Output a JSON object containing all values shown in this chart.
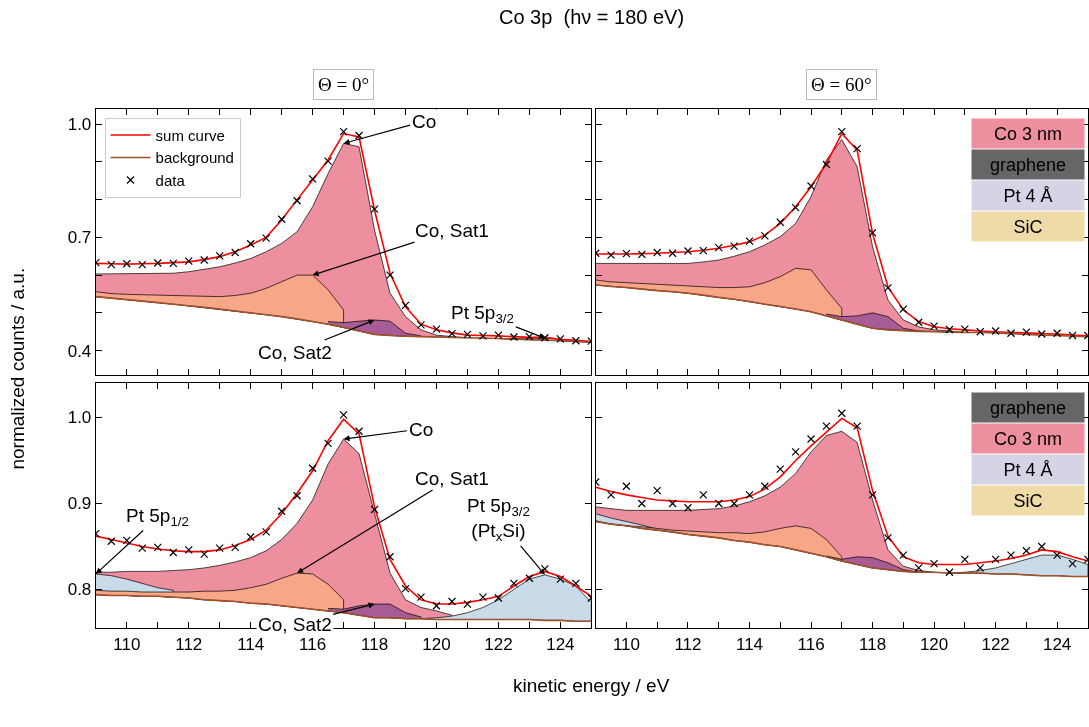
{
  "chart_data": [
    {
      "type": "line",
      "title": "Co 3p  (hν = 180 eV)",
      "subtitle": "Θ = 0°",
      "ylabel": "normalized counts / a.u.",
      "xlim": [
        109,
        125
      ],
      "ylim": [
        0.335,
        1.04
      ],
      "xticks": [
        110,
        {
          "value": 111,
          "label": null
        },
        112,
        {
          "value": 113,
          "label": null
        },
        114,
        {
          "value": 115,
          "label": null
        },
        116,
        {
          "value": 117,
          "label": null
        },
        118,
        {
          "value": 119,
          "label": null
        },
        120,
        {
          "value": 121,
          "label": null
        },
        122,
        {
          "value": 123,
          "label": null
        },
        124
      ],
      "yticks": [
        0.4,
        {
          "value": 0.5,
          "label": null
        },
        {
          "value": 0.6,
          "label": null
        },
        0.7,
        {
          "value": 0.8,
          "label": null
        },
        {
          "value": 0.9,
          "label": null
        },
        {
          "value": 1.0,
          "label": "1.0"
        }
      ],
      "tick_labels": "y",
      "legend": "top left",
      "x": [
        109,
        109.5,
        110,
        110.5,
        111,
        111.5,
        112,
        112.5,
        113,
        113.5,
        114,
        114.5,
        115,
        115.5,
        116,
        116.5,
        117,
        117.5,
        118,
        118.5,
        119,
        119.5,
        120,
        120.5,
        121,
        121.5,
        122,
        122.5,
        123,
        123.5,
        124,
        124.5,
        125
      ],
      "series": [
        {
          "type": "area",
          "color": "#ee8fa0",
          "x": [
            109,
            109.5,
            110,
            110.5,
            111,
            111.5,
            112,
            112.5,
            113,
            113.5,
            114,
            114.5,
            115,
            115.5,
            116,
            116.5,
            117,
            117.5,
            118,
            118.5,
            119,
            119.5,
            120,
            120.5,
            121
          ],
          "values": [
            0.603,
            0.603,
            0.603,
            0.603,
            0.603,
            0.605,
            0.609,
            0.615,
            0.622,
            0.632,
            0.644,
            0.662,
            0.684,
            0.715,
            0.781,
            0.869,
            0.949,
            0.94,
            0.719,
            0.552,
            0.49,
            0.455,
            0.441,
            0.437,
            0.435
          ]
        },
        {
          "type": "area",
          "color": "#f7a688",
          "x": [
            109,
            109.5,
            110,
            110.5,
            111,
            111.5,
            112,
            112.5,
            113,
            113.5,
            114,
            114.5,
            115,
            115.5,
            116,
            116.5,
            117
          ],
          "values": [
            0.556,
            0.551,
            0.549,
            0.548,
            0.547,
            0.545,
            0.544,
            0.543,
            0.543,
            0.546,
            0.552,
            0.565,
            0.583,
            0.6,
            0.6,
            0.561,
            0.508
          ]
        },
        {
          "type": "area",
          "color": "#a85c95",
          "x": [
            116.5,
            117,
            117.5,
            118,
            118.5,
            119,
            119.5
          ],
          "values": [
            0.477,
            0.474,
            0.478,
            0.481,
            0.478,
            0.446,
            0.439
          ]
        },
        {
          "type": "area",
          "color": "#c9dbe8",
          "x": [
            122,
            122.5,
            123,
            123.5,
            124,
            124.5,
            125
          ],
          "values": [
            0.432,
            0.432,
            0.432,
            0.433,
            0.43,
            0.426,
            0.422
          ]
        },
        {
          "name": "sum curve",
          "color": "#ff0000",
          "values": [
            0.631,
            0.63,
            0.629,
            0.63,
            0.631,
            0.633,
            0.635,
            0.641,
            0.649,
            0.662,
            0.68,
            0.7,
            0.746,
            0.8,
            0.852,
            0.905,
            0.975,
            0.966,
            0.772,
            0.605,
            0.516,
            0.47,
            0.455,
            0.447,
            0.441,
            0.44,
            0.439,
            0.437,
            0.435,
            0.435,
            0.43,
            0.427,
            0.424
          ]
        },
        {
          "name": "background",
          "color": "#a0522d",
          "values": [
            0.543,
            0.539,
            0.535,
            0.531,
            0.527,
            0.523,
            0.519,
            0.515,
            0.51,
            0.505,
            0.5,
            0.495,
            0.49,
            0.484,
            0.477,
            0.47,
            0.462,
            0.452,
            0.443,
            0.44,
            0.438,
            0.437,
            0.436,
            0.435,
            0.434,
            0.433,
            0.432,
            0.43,
            0.429,
            0.428,
            0.426,
            0.424,
            0.422
          ]
        },
        {
          "name": "data",
          "type": "scatter",
          "marker": "cross",
          "color": "#000000",
          "values": [
            0.633,
            0.628,
            0.63,
            0.628,
            0.632,
            0.631,
            0.637,
            0.64,
            0.651,
            0.66,
            0.683,
            0.698,
            0.748,
            0.797,
            0.855,
            0.902,
            0.98,
            0.97,
            0.775,
            0.6,
            0.52,
            0.468,
            0.457,
            0.445,
            0.443,
            0.439,
            0.441,
            0.436,
            0.437,
            0.434,
            0.431,
            0.426,
            0.425
          ]
        }
      ],
      "annotations": [
        {
          "text": "Co",
          "x": 117,
          "y": 0.949
        },
        {
          "text": "Co, Sat1",
          "x": 116,
          "y": 0.6
        },
        {
          "text": "Co, Sat2",
          "x": 118,
          "y": 0.481
        },
        {
          "text": "Pt 5p$_{3/2}$",
          "x": 123.5,
          "y": 0.433
        }
      ]
    },
    {
      "type": "line",
      "subtitle": "Θ = 60°",
      "xlim": [
        109,
        125
      ],
      "ylim": [
        0.335,
        1.04
      ],
      "xticks": [
        110,
        {
          "value": 111,
          "label": null
        },
        112,
        {
          "value": 113,
          "label": null
        },
        114,
        {
          "value": 115,
          "label": null
        },
        116,
        {
          "value": 117,
          "label": null
        },
        118,
        {
          "value": 119,
          "label": null
        },
        120,
        {
          "value": 121,
          "label": null
        },
        122,
        {
          "value": 123,
          "label": null
        },
        124
      ],
      "yticks": [
        0.4,
        {
          "value": 0.5,
          "label": null
        },
        {
          "value": 0.6,
          "label": null
        },
        0.7,
        {
          "value": 0.8,
          "label": null
        },
        {
          "value": 0.9,
          "label": null
        },
        1.0
      ],
      "tick_labels": false,
      "x": [
        109,
        109.5,
        110,
        110.5,
        111,
        111.5,
        112,
        112.5,
        113,
        113.5,
        114,
        114.5,
        115,
        115.5,
        116,
        116.5,
        117,
        117.5,
        118,
        118.5,
        119,
        119.5,
        120,
        120.5,
        121,
        121.5,
        122,
        122.5,
        123,
        123.5,
        124,
        124.5,
        125
      ],
      "series": [
        {
          "type": "area",
          "color": "#ee8fa0",
          "x": [
            109,
            109.5,
            110,
            110.5,
            111,
            111.5,
            112,
            112.5,
            113,
            113.5,
            114,
            114.5,
            115,
            115.5,
            116,
            116.5,
            117,
            117.5,
            118,
            118.5,
            119,
            119.5,
            120,
            120.5,
            121
          ],
          "values": [
            0.631,
            0.631,
            0.63,
            0.63,
            0.629,
            0.629,
            0.631,
            0.635,
            0.64,
            0.65,
            0.662,
            0.68,
            0.702,
            0.737,
            0.808,
            0.905,
            0.959,
            0.887,
            0.675,
            0.534,
            0.481,
            0.463,
            0.455,
            0.452,
            0.45
          ]
        },
        {
          "type": "area",
          "color": "#f7a688",
          "x": [
            109,
            109.5,
            110,
            110.5,
            111,
            111.5,
            112,
            112.5,
            113,
            113.5,
            114,
            114.5,
            115,
            115.5,
            116,
            116.5,
            117
          ],
          "values": [
            0.587,
            0.582,
            0.58,
            0.578,
            0.576,
            0.573,
            0.571,
            0.569,
            0.567,
            0.567,
            0.569,
            0.58,
            0.596,
            0.618,
            0.614,
            0.561,
            0.512
          ]
        },
        {
          "type": "area",
          "color": "#a85c95",
          "x": [
            116.5,
            117,
            117.5,
            118,
            118.5,
            119,
            119.5
          ],
          "values": [
            0.497,
            0.49,
            0.492,
            0.5,
            0.49,
            0.459,
            0.452
          ]
        },
        {
          "color": "#ff0000",
          "values": [
            0.656,
            0.656,
            0.656,
            0.657,
            0.658,
            0.66,
            0.662,
            0.666,
            0.671,
            0.679,
            0.688,
            0.706,
            0.737,
            0.781,
            0.834,
            0.896,
            0.975,
            0.931,
            0.71,
            0.569,
            0.508,
            0.477,
            0.463,
            0.458,
            0.455,
            0.452,
            0.45,
            0.448,
            0.447,
            0.445,
            0.444,
            0.441,
            0.439
          ]
        },
        {
          "color": "#a0522d",
          "values": [
            0.574,
            0.57,
            0.567,
            0.563,
            0.559,
            0.556,
            0.552,
            0.547,
            0.541,
            0.536,
            0.53,
            0.523,
            0.517,
            0.51,
            0.503,
            0.492,
            0.481,
            0.47,
            0.459,
            0.455,
            0.453,
            0.451,
            0.45,
            0.449,
            0.448,
            0.448,
            0.447,
            0.445,
            0.443,
            0.441,
            0.44,
            0.438,
            0.437
          ]
        },
        {
          "type": "scatter",
          "marker": "cross",
          "color": "#000000",
          "values": [
            0.658,
            0.653,
            0.657,
            0.655,
            0.66,
            0.658,
            0.664,
            0.665,
            0.673,
            0.677,
            0.69,
            0.704,
            0.74,
            0.779,
            0.836,
            0.893,
            0.98,
            0.935,
            0.712,
            0.566,
            0.51,
            0.475,
            0.465,
            0.456,
            0.457,
            0.45,
            0.452,
            0.446,
            0.449,
            0.444,
            0.446,
            0.44,
            0.44
          ]
        }
      ],
      "annotations": [
        "Co 3 nm",
        "graphene",
        "Pt 4 Å",
        "SiC"
      ]
    },
    {
      "type": "line",
      "xlabel": "kinetic energy / eV",
      "xlim": [
        109,
        125
      ],
      "ylim": [
        0.755,
        1.04
      ],
      "xticks": [
        110,
        {
          "value": 111,
          "label": null
        },
        112,
        {
          "value": 113,
          "label": null
        },
        114,
        {
          "value": 115,
          "label": null
        },
        116,
        {
          "value": 117,
          "label": null
        },
        118,
        {
          "value": 119,
          "label": null
        },
        120,
        {
          "value": 121,
          "label": null
        },
        122,
        {
          "value": 123,
          "label": null
        },
        124
      ],
      "yticks": [
        0.8,
        0.9,
        {
          "value": 1.0,
          "label": "1.0"
        }
      ],
      "x": [
        109,
        109.5,
        110,
        110.5,
        111,
        111.5,
        112,
        112.5,
        113,
        113.5,
        114,
        114.5,
        115,
        115.5,
        116,
        116.5,
        117,
        117.5,
        118,
        118.5,
        119,
        119.5,
        120,
        120.5,
        121,
        121.5,
        122,
        122.5,
        123,
        123.5,
        124,
        124.5,
        125
      ],
      "series": [
        {
          "type": "area",
          "color": "#ee8fa0",
          "x": [
            109,
            109.5,
            110,
            111,
            111.5,
            112,
            112.5,
            113,
            113.5,
            114,
            114.5,
            115,
            115.5,
            116,
            116.5,
            117,
            117.5,
            118.5,
            119,
            119.5,
            120,
            120.5
          ],
          "values": [
            0.82,
            0.82,
            0.821,
            0.821,
            0.822,
            0.823,
            0.825,
            0.828,
            0.832,
            0.837,
            0.845,
            0.858,
            0.877,
            0.904,
            0.946,
            0.975,
            0.958,
            0.819,
            0.788,
            0.779,
            0.775,
            0.77
          ]
        },
        {
          "type": "area",
          "color": "#c9dbe8",
          "x": [
            109,
            109.5,
            110,
            110.5,
            111,
            111.5
          ],
          "values": [
            0.818,
            0.816,
            0.812,
            0.807,
            0.802,
            0.799
          ]
        },
        {
          "type": "area",
          "color": "#f7a688",
          "x": [
            109,
            109.5,
            110,
            110.5,
            111,
            111.5,
            112,
            112.5,
            113,
            113.5,
            114,
            114.5,
            115,
            115.5,
            116,
            116.5,
            117
          ],
          "values": [
            0.799,
            0.798,
            0.798,
            0.797,
            0.797,
            0.797,
            0.797,
            0.798,
            0.798,
            0.799,
            0.802,
            0.806,
            0.813,
            0.819,
            0.818,
            0.806,
            0.788
          ]
        },
        {
          "type": "area",
          "color": "#a85c95",
          "x": [
            116.5,
            117,
            117.5,
            118,
            118.5,
            119,
            119.5
          ],
          "values": [
            0.778,
            0.777,
            0.781,
            0.783,
            0.783,
            0.773,
            0.768
          ]
        },
        {
          "type": "area",
          "color": "#c9dbe8",
          "x": [
            119.5,
            120,
            120.5,
            121,
            121.5,
            122,
            122.5,
            123,
            123.5,
            124,
            124.5,
            125
          ],
          "values": [
            0.766,
            0.767,
            0.769,
            0.773,
            0.779,
            0.788,
            0.8,
            0.812,
            0.817,
            0.812,
            0.804,
            0.785
          ]
        },
        {
          "color": "#ff0000",
          "values": [
            0.862,
            0.858,
            0.854,
            0.85,
            0.847,
            0.845,
            0.844,
            0.844,
            0.846,
            0.851,
            0.858,
            0.869,
            0.888,
            0.912,
            0.938,
            0.973,
            0.998,
            0.981,
            0.896,
            0.835,
            0.804,
            0.788,
            0.783,
            0.783,
            0.785,
            0.788,
            0.792,
            0.804,
            0.815,
            0.821,
            0.815,
            0.804,
            0.792
          ]
        },
        {
          "color": "#a0522d",
          "values": [
            0.794,
            0.793,
            0.793,
            0.792,
            0.792,
            0.791,
            0.79,
            0.788,
            0.787,
            0.786,
            0.784,
            0.783,
            0.781,
            0.779,
            0.777,
            0.775,
            0.773,
            0.77,
            0.767,
            0.767,
            0.766,
            0.766,
            0.765,
            0.765,
            0.765,
            0.765,
            0.765,
            0.765,
            0.765,
            0.764,
            0.764,
            0.763,
            0.763
          ]
        },
        {
          "type": "scatter",
          "marker": "cross",
          "color": "#000000",
          "values": [
            0.865,
            0.856,
            0.857,
            0.848,
            0.849,
            0.843,
            0.846,
            0.841,
            0.848,
            0.849,
            0.861,
            0.867,
            0.891,
            0.909,
            0.941,
            0.97,
            1.003,
            0.984,
            0.893,
            0.838,
            0.801,
            0.791,
            0.781,
            0.786,
            0.783,
            0.791,
            0.79,
            0.807,
            0.813,
            0.824,
            0.812,
            0.807,
            0.79
          ]
        }
      ],
      "annotations": [
        {
          "text": "Co",
          "x": 117,
          "y": 0.975
        },
        {
          "text": "Co, Sat1",
          "x": 115.5,
          "y": 0.819
        },
        {
          "text": "Co, Sat2",
          "x": 118,
          "y": 0.783
        },
        {
          "text": "Pt 5p$_{1/2}$",
          "x": 109,
          "y": 0.818
        },
        {
          "text": "Pt 5p$_{3/2}$\n(Pt$_{x}$Si)",
          "x": 123.5,
          "y": 0.817
        }
      ]
    },
    {
      "type": "line",
      "xlim": [
        109,
        125
      ],
      "ylim": [
        0.755,
        1.04
      ],
      "xticks": [
        110,
        {
          "value": 111,
          "label": null
        },
        112,
        {
          "value": 113,
          "label": null
        },
        114,
        {
          "value": 115,
          "label": null
        },
        116,
        {
          "value": 117,
          "label": null
        },
        118,
        {
          "value": 119,
          "label": null
        },
        120,
        {
          "value": 121,
          "label": null
        },
        122,
        {
          "value": 123,
          "label": null
        },
        124
      ],
      "yticks": [
        0.8,
        0.9,
        1.0
      ],
      "tick_labels": "x",
      "x": [
        109,
        109.5,
        110,
        110.5,
        111,
        111.5,
        112,
        112.5,
        113,
        113.5,
        114,
        114.5,
        115,
        115.5,
        116,
        116.5,
        117,
        117.5,
        118,
        118.5,
        119,
        119.5,
        120,
        120.5,
        121,
        121.5,
        122,
        122.5,
        123,
        123.5,
        124,
        124.5,
        125
      ],
      "series": [
        {
          "type": "area",
          "color": "#ee8fa0",
          "x": [
            109,
            110,
            112,
            113,
            113.5,
            114,
            114.5,
            115,
            115.5,
            116,
            116.5,
            117,
            117.5,
            118,
            118.5,
            119,
            119.5,
            120
          ],
          "values": [
            0.896,
            0.892,
            0.892,
            0.894,
            0.897,
            0.902,
            0.909,
            0.919,
            0.935,
            0.96,
            0.979,
            0.984,
            0.971,
            0.904,
            0.846,
            0.827,
            0.822,
            0.82
          ]
        },
        {
          "type": "area",
          "color": "#c9dbe8",
          "x": [
            109,
            109.5,
            110,
            110.5,
            111
          ],
          "values": [
            0.888,
            0.883,
            0.879,
            0.875,
            0.87
          ]
        },
        {
          "type": "area",
          "color": "#f7a688",
          "x": [
            109,
            109.5,
            110,
            110.5,
            111,
            111.5,
            112,
            113,
            113.5,
            114,
            114.5,
            115,
            115.5,
            116,
            116.5,
            117
          ],
          "values": [
            0.88,
            0.876,
            0.874,
            0.873,
            0.871,
            0.869,
            0.868,
            0.866,
            0.866,
            0.865,
            0.867,
            0.871,
            0.874,
            0.871,
            0.858,
            0.838
          ]
        },
        {
          "type": "area",
          "color": "#a85c95",
          "x": [
            116.5,
            117,
            117.5,
            118,
            118.5,
            119,
            119.5
          ],
          "values": [
            0.839,
            0.835,
            0.838,
            0.837,
            0.831,
            0.823,
            0.82
          ]
        },
        {
          "type": "area",
          "color": "#c9dbe8",
          "x": [
            120.5,
            121,
            121.5,
            122,
            122.5,
            123,
            123.5,
            124,
            124.5,
            125
          ],
          "values": [
            0.819,
            0.82,
            0.822,
            0.825,
            0.83,
            0.835,
            0.84,
            0.84,
            0.835,
            0.829
          ]
        },
        {
          "color": "#ff0000",
          "values": [
            0.919,
            0.914,
            0.91,
            0.907,
            0.904,
            0.903,
            0.902,
            0.902,
            0.902,
            0.904,
            0.908,
            0.917,
            0.931,
            0.95,
            0.967,
            0.983,
            0.999,
            0.988,
            0.915,
            0.862,
            0.838,
            0.831,
            0.829,
            0.829,
            0.829,
            0.831,
            0.833,
            0.836,
            0.84,
            0.846,
            0.844,
            0.838,
            0.833
          ]
        },
        {
          "color": "#a0522d",
          "values": [
            0.879,
            0.876,
            0.874,
            0.871,
            0.869,
            0.867,
            0.864,
            0.862,
            0.86,
            0.857,
            0.855,
            0.852,
            0.85,
            0.846,
            0.842,
            0.838,
            0.833,
            0.829,
            0.825,
            0.823,
            0.821,
            0.82,
            0.82,
            0.819,
            0.819,
            0.819,
            0.818,
            0.818,
            0.817,
            0.816,
            0.816,
            0.815,
            0.815
          ]
        },
        {
          "type": "scatter",
          "marker": "cross",
          "color": "#000000",
          "values": [
            0.925,
            0.91,
            0.92,
            0.9,
            0.915,
            0.9,
            0.895,
            0.91,
            0.9,
            0.9,
            0.91,
            0.92,
            0.94,
            0.96,
            0.975,
            0.99,
            1.005,
            0.99,
            0.91,
            0.86,
            0.84,
            0.825,
            0.83,
            0.82,
            0.835,
            0.825,
            0.835,
            0.84,
            0.845,
            0.85,
            0.84,
            0.83,
            0.835
          ]
        }
      ],
      "annotations": [
        "graphene",
        "Co 3 nm",
        "Pt 4 Å",
        "SiC"
      ]
    }
  ]
}
